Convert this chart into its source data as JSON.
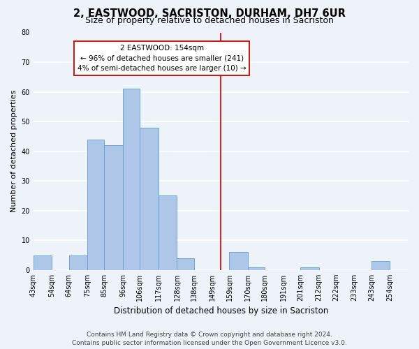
{
  "title": "2, EASTWOOD, SACRISTON, DURHAM, DH7 6UR",
  "subtitle": "Size of property relative to detached houses in Sacriston",
  "xlabel": "Distribution of detached houses by size in Sacriston",
  "ylabel": "Number of detached properties",
  "bin_labels": [
    "43sqm",
    "54sqm",
    "64sqm",
    "75sqm",
    "85sqm",
    "96sqm",
    "106sqm",
    "117sqm",
    "128sqm",
    "138sqm",
    "149sqm",
    "159sqm",
    "170sqm",
    "180sqm",
    "191sqm",
    "201sqm",
    "212sqm",
    "222sqm",
    "233sqm",
    "243sqm",
    "254sqm"
  ],
  "bin_edges": [
    43,
    54,
    64,
    75,
    85,
    96,
    106,
    117,
    128,
    138,
    149,
    159,
    170,
    180,
    191,
    201,
    212,
    222,
    233,
    243,
    254
  ],
  "counts": [
    5,
    0,
    5,
    44,
    42,
    61,
    48,
    25,
    4,
    0,
    0,
    6,
    1,
    0,
    0,
    1,
    0,
    0,
    0,
    3,
    0
  ],
  "bar_color": "#aec6e8",
  "bar_edge_color": "#5a9fd4",
  "property_size": 154,
  "vline_color": "#cc0000",
  "annotation_line1": "2 EASTWOOD: 154sqm",
  "annotation_line2": "← 96% of detached houses are smaller (241)",
  "annotation_line3": "4% of semi-detached houses are larger (10) →",
  "annotation_box_color": "#ffffff",
  "annotation_box_edge_color": "#cc0000",
  "ylim": [
    0,
    80
  ],
  "yticks": [
    0,
    10,
    20,
    30,
    40,
    50,
    60,
    70,
    80
  ],
  "background_color": "#eef2f9",
  "grid_color": "#ffffff",
  "footer_text": "Contains HM Land Registry data © Crown copyright and database right 2024.\nContains public sector information licensed under the Open Government Licence v3.0.",
  "title_fontsize": 10.5,
  "subtitle_fontsize": 9,
  "xlabel_fontsize": 8.5,
  "ylabel_fontsize": 8,
  "tick_fontsize": 7,
  "annotation_fontsize": 7.5,
  "footer_fontsize": 6.5
}
